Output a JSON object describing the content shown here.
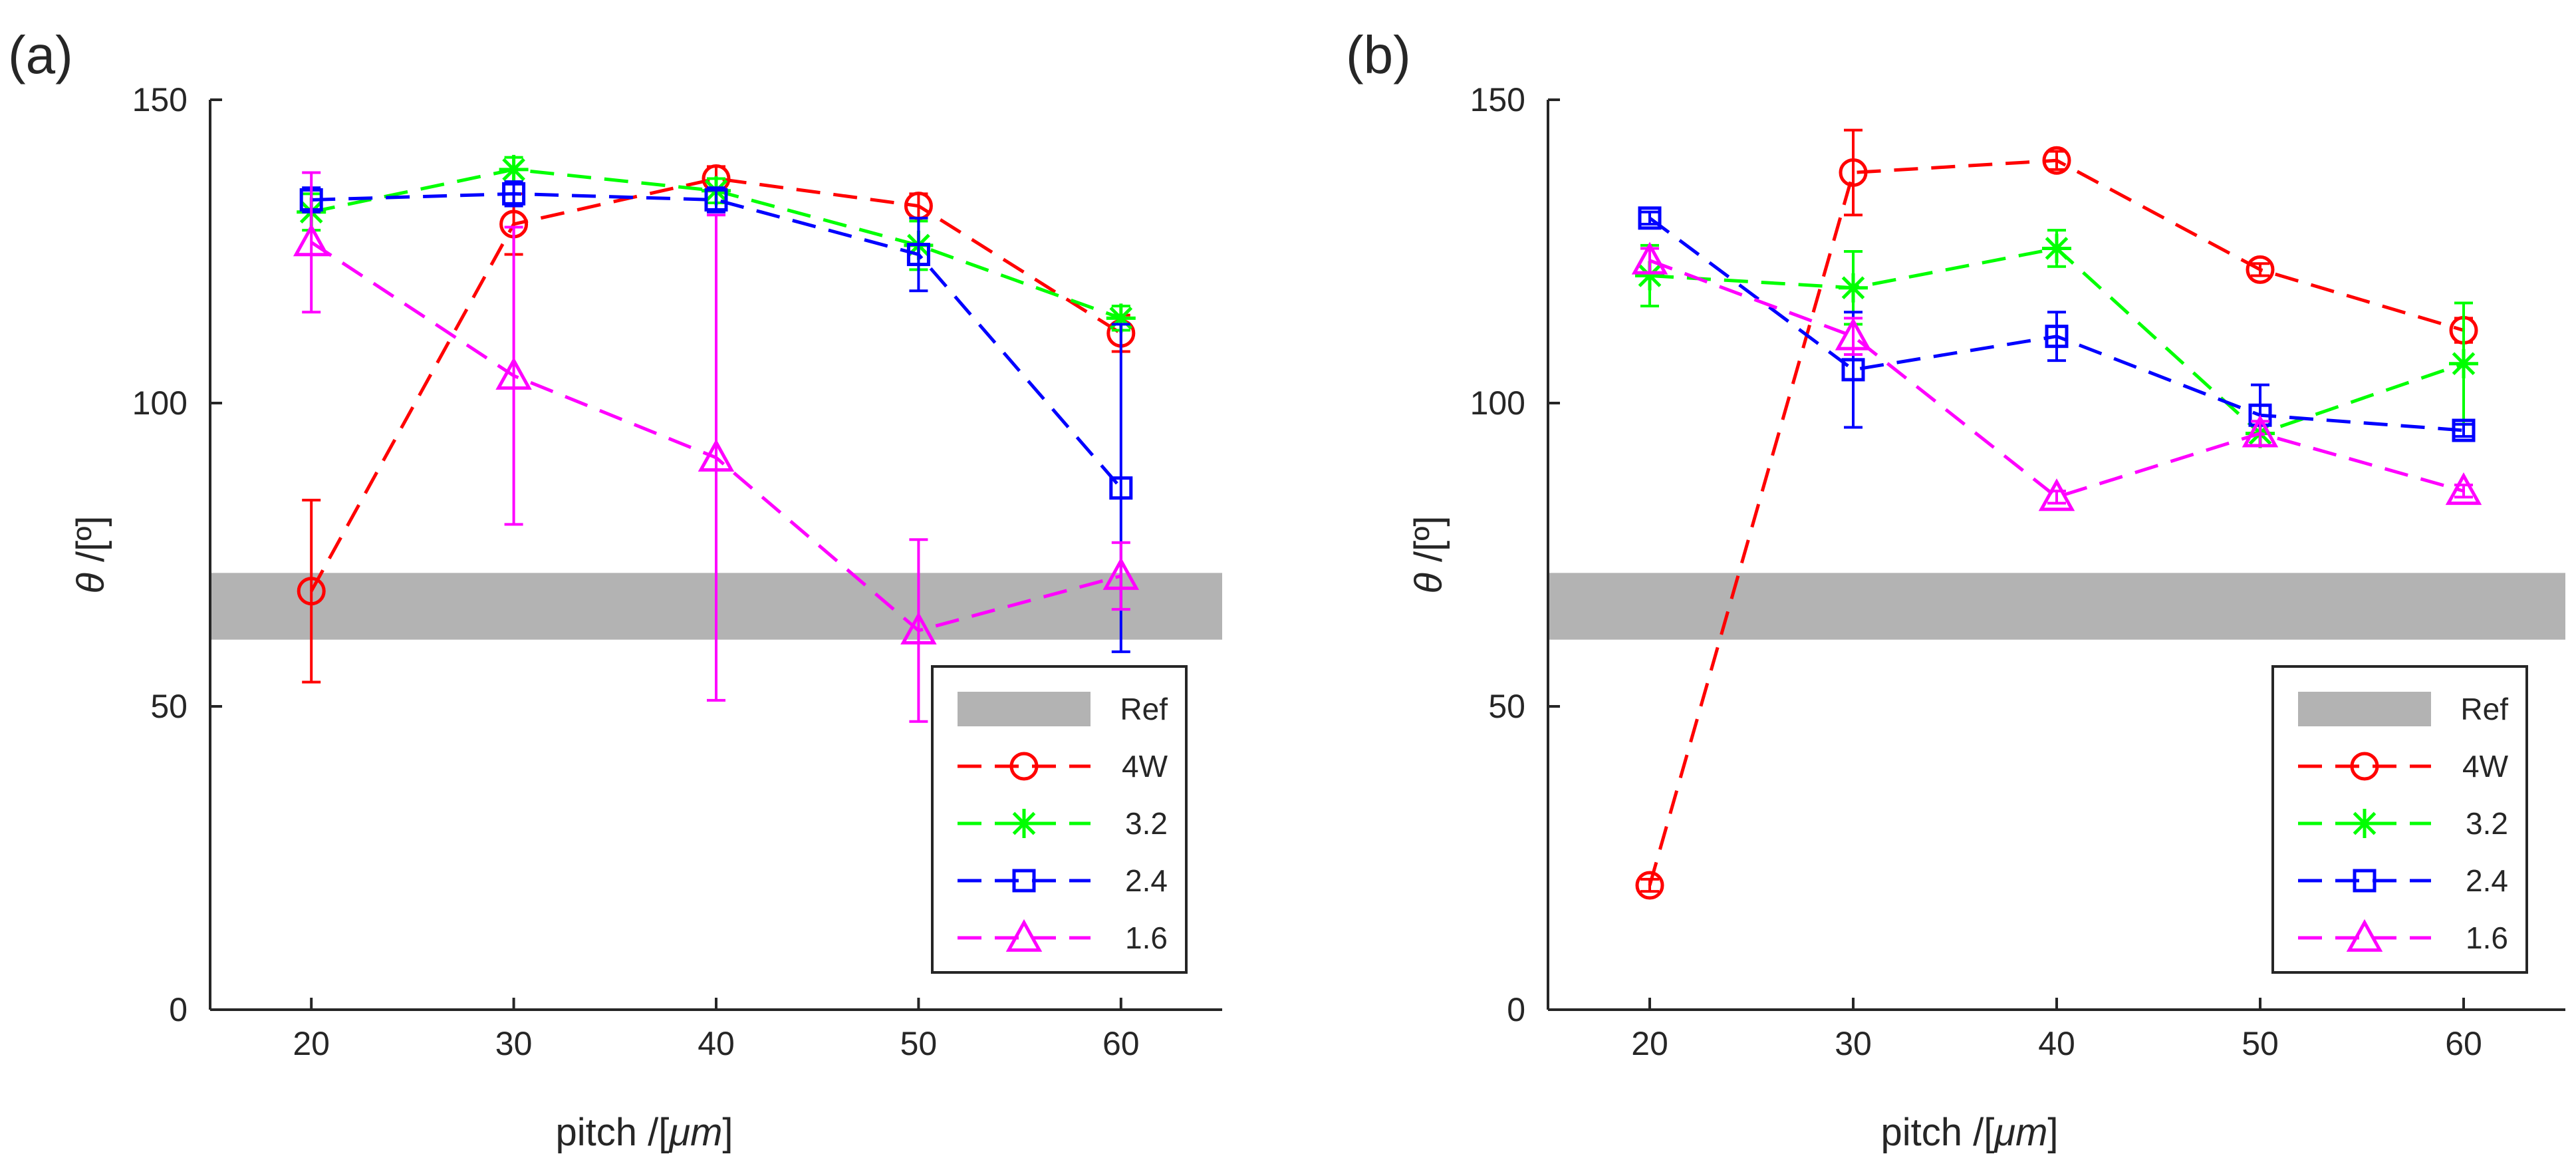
{
  "chart_data": [
    {
      "type": "line",
      "panel": "(a)",
      "xlabel_main": "pitch /[",
      "xlabel_unit": "μm",
      "xlabel_end": "]",
      "ylabel_main": "θ",
      "ylabel_unit": " /[º]",
      "xlim": [
        15,
        65
      ],
      "ylim": [
        0,
        150
      ],
      "x_ticks": [
        20,
        30,
        40,
        50,
        60
      ],
      "y_ticks": [
        0,
        50,
        100,
        150
      ],
      "x": [
        20,
        30,
        40,
        50,
        60
      ],
      "ref_band": {
        "label": "Ref",
        "low": 61,
        "high": 72,
        "color": "#b3b3b3"
      },
      "legend_position": "bottom-right",
      "series": [
        {
          "name": "4W",
          "marker": "circle",
          "color": "#ff0000",
          "values": [
            69,
            129.5,
            137,
            132.5,
            111.5
          ],
          "errors": [
            15,
            5,
            2,
            2,
            3
          ]
        },
        {
          "name": "3.2",
          "marker": "asterisk",
          "color": "#00ff00",
          "values": [
            131.5,
            138.5,
            135,
            126,
            114
          ],
          "errors": [
            3,
            2,
            2,
            4,
            2
          ]
        },
        {
          "name": "2.4",
          "marker": "square",
          "color": "#0000ff",
          "values": [
            133.5,
            134.5,
            133.5,
            124.5,
            86
          ],
          "errors": [
            2,
            2,
            2,
            6,
            27
          ]
        },
        {
          "name": "1.6",
          "marker": "triangle",
          "color": "#ff00ff",
          "values": [
            126.5,
            104.5,
            91,
            62.5,
            71.5
          ],
          "errors": [
            11.5,
            24.5,
            40,
            15,
            5.5
          ]
        }
      ]
    },
    {
      "type": "line",
      "panel": "(b)",
      "xlabel_main": "pitch /[",
      "xlabel_unit": "μm",
      "xlabel_end": "]",
      "ylabel_main": "θ",
      "ylabel_unit": " /[º]",
      "xlim": [
        15,
        65
      ],
      "ylim": [
        0,
        150
      ],
      "x_ticks": [
        20,
        30,
        40,
        50,
        60
      ],
      "y_ticks": [
        0,
        50,
        100,
        150
      ],
      "x": [
        20,
        30,
        40,
        50,
        60
      ],
      "ref_band": {
        "label": "Ref",
        "low": 61,
        "high": 72,
        "color": "#b3b3b3"
      },
      "legend_position": "bottom-right",
      "series": [
        {
          "name": "4W",
          "marker": "circle",
          "color": "#ff0000",
          "values": [
            20.5,
            138,
            140,
            122,
            112
          ],
          "errors": [
            1,
            7,
            1.5,
            1,
            2
          ]
        },
        {
          "name": "3.2",
          "marker": "asterisk",
          "color": "#00ff00",
          "values": [
            121,
            119,
            125.5,
            95,
            106.5
          ],
          "errors": [
            5,
            6,
            3,
            2,
            10
          ]
        },
        {
          "name": "2.4",
          "marker": "square",
          "color": "#0000ff",
          "values": [
            130.5,
            105.5,
            111,
            98,
            95.5
          ],
          "errors": [
            1,
            9.5,
            4,
            5,
            1
          ]
        },
        {
          "name": "1.6",
          "marker": "triangle",
          "color": "#ff00ff",
          "values": [
            123.5,
            111,
            84.5,
            95,
            85.5
          ],
          "errors": [
            2,
            3,
            1,
            2,
            1
          ]
        }
      ]
    }
  ]
}
